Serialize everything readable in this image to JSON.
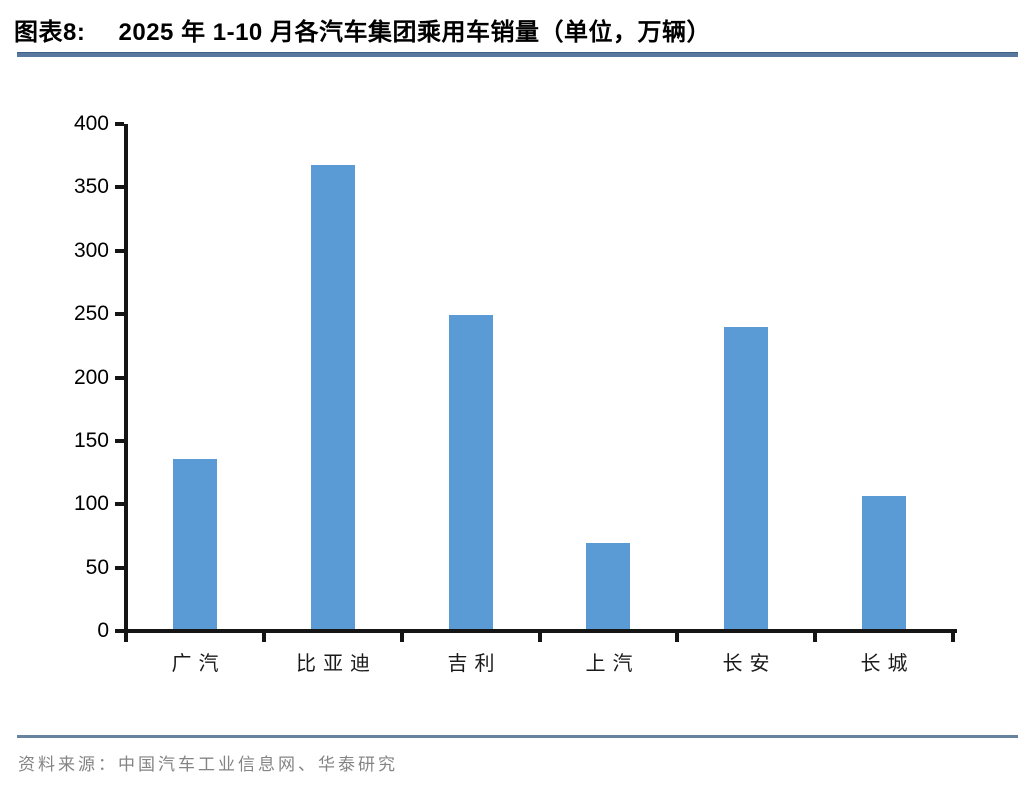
{
  "figure": {
    "label": "图表8:",
    "title": "2025 年 1-10 月各汽车集团乘用车销量（单位，万辆）"
  },
  "chart_data": {
    "type": "bar",
    "categories": [
      "广汽",
      "比亚迪",
      "吉利",
      "上汽",
      "长安",
      "长城"
    ],
    "values": [
      134,
      366,
      248,
      68,
      238,
      105
    ],
    "series_name": "乘用车销量",
    "title": "2025 年 1-10 月各汽车集团乘用车销量",
    "unit": "万辆",
    "xlabel": "",
    "ylabel": "",
    "ylim": [
      0,
      400
    ],
    "yticks": [
      0,
      50,
      100,
      150,
      200,
      250,
      300,
      350,
      400
    ],
    "grid": false,
    "legend_position": "none",
    "bar_color": "#5B9BD5"
  },
  "footer": {
    "source_text": "资料来源：中国汽车工业信息网、华泰研究"
  },
  "colors": {
    "bar": "#5B9BD5",
    "title_rule": "#5878A0",
    "footer_rule": "#66839F",
    "axis": "#151515",
    "source_text": "#848484"
  }
}
